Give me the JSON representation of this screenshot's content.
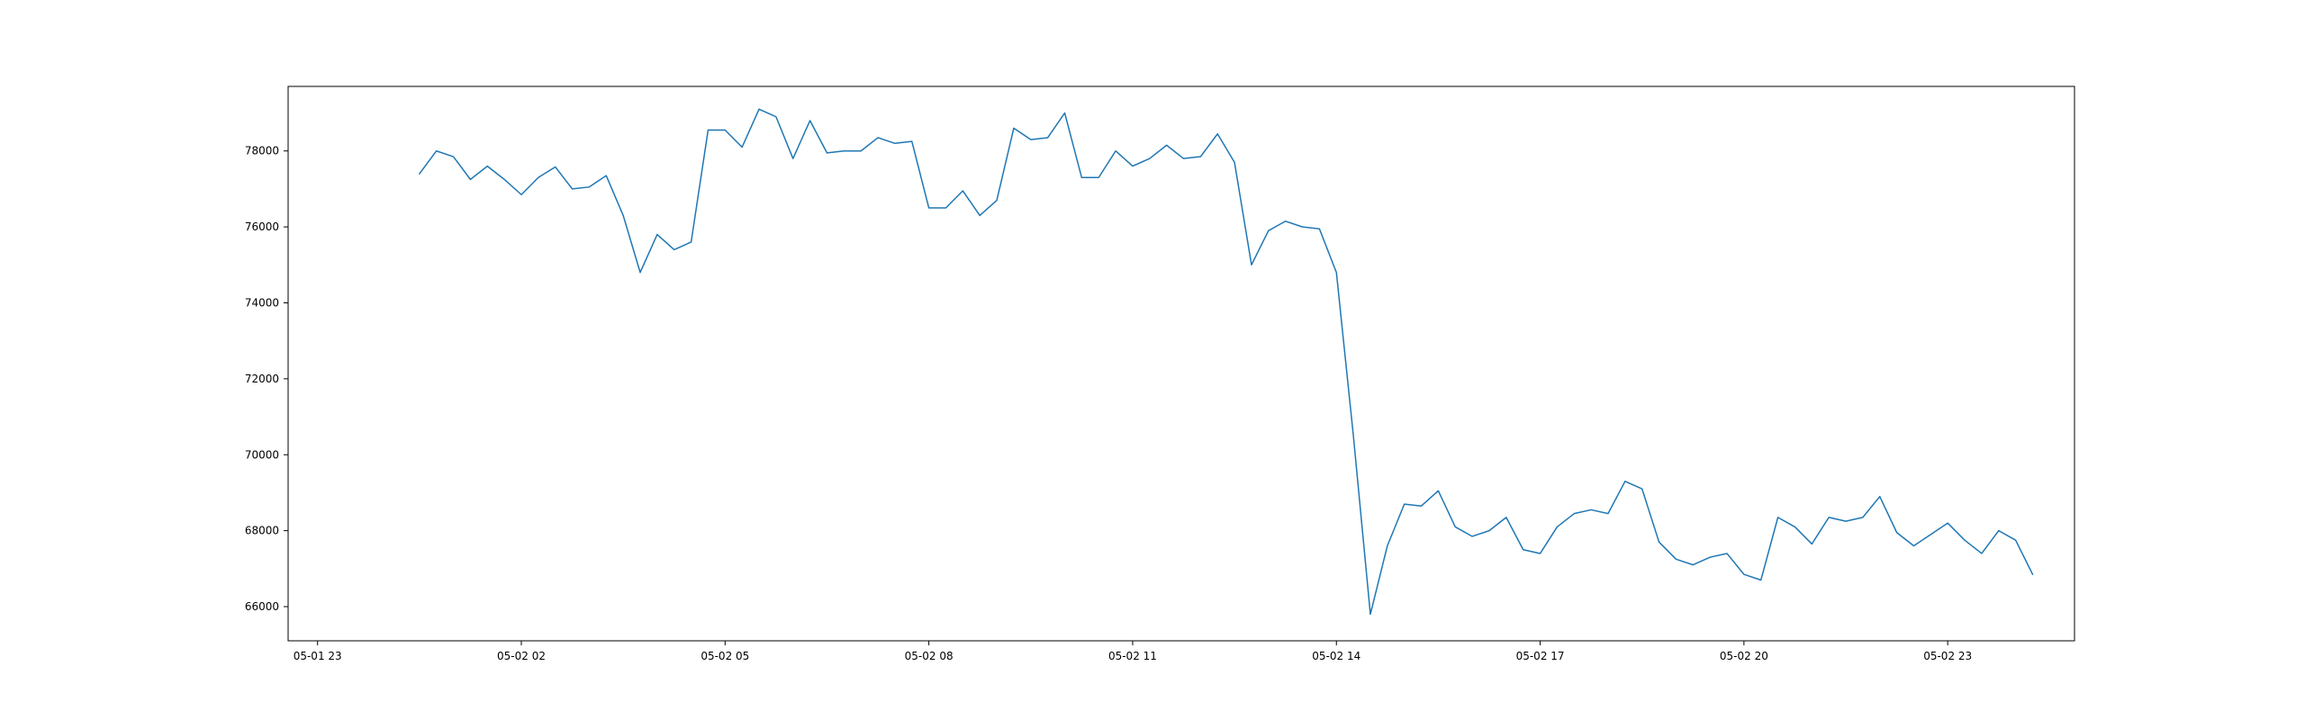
{
  "chart_data": {
    "type": "line",
    "title": "",
    "xlabel": "",
    "ylabel": "",
    "grid": false,
    "legend": "none",
    "x_start": "2024-05-02 00:30",
    "x_step_minutes": 15,
    "xlim": [
      "2024-05-01 22:34",
      "2024-05-03 00:52"
    ],
    "ylim": [
      65100,
      79700
    ],
    "x_ticks": [
      {
        "label": "05-01 23",
        "t": "2024-05-01 23:00"
      },
      {
        "label": "05-02 02",
        "t": "2024-05-02 02:00"
      },
      {
        "label": "05-02 05",
        "t": "2024-05-02 05:00"
      },
      {
        "label": "05-02 08",
        "t": "2024-05-02 08:00"
      },
      {
        "label": "05-02 11",
        "t": "2024-05-02 11:00"
      },
      {
        "label": "05-02 14",
        "t": "2024-05-02 14:00"
      },
      {
        "label": "05-02 17",
        "t": "2024-05-02 17:00"
      },
      {
        "label": "05-02 20",
        "t": "2024-05-02 20:00"
      },
      {
        "label": "05-02 23",
        "t": "2024-05-02 23:00"
      }
    ],
    "y_ticks": [
      {
        "label": "66000",
        "v": 66000
      },
      {
        "label": "68000",
        "v": 68000
      },
      {
        "label": "70000",
        "v": 70000
      },
      {
        "label": "72000",
        "v": 72000
      },
      {
        "label": "74000",
        "v": 74000
      },
      {
        "label": "76000",
        "v": 76000
      },
      {
        "label": "78000",
        "v": 78000
      }
    ],
    "series": [
      {
        "color": "#1f77b4",
        "values": [
          77400,
          78000,
          77850,
          77250,
          77600,
          77250,
          76850,
          77300,
          77580,
          77000,
          77050,
          77350,
          76300,
          74800,
          75800,
          75400,
          75600,
          78550,
          78550,
          78100,
          79100,
          78900,
          77800,
          78800,
          77950,
          78000,
          78000,
          78350,
          78200,
          78250,
          76500,
          76500,
          76950,
          76300,
          76700,
          78600,
          78300,
          78350,
          79000,
          77300,
          77300,
          78000,
          77600,
          77800,
          78150,
          77800,
          77850,
          78450,
          77700,
          75000,
          75900,
          76150,
          76000,
          75950,
          74800,
          70500,
          65800,
          67600,
          68700,
          68650,
          69050,
          68100,
          67850,
          68000,
          68350,
          67500,
          67400,
          68100,
          68450,
          68550,
          68450,
          69300,
          69100,
          67700,
          67250,
          67100,
          67300,
          67400,
          66850,
          66700,
          68350,
          68100,
          67650,
          68350,
          68250,
          68350,
          68900,
          67950,
          67600,
          67900,
          68200,
          67750,
          67400,
          68000,
          67750,
          66850
        ]
      }
    ]
  }
}
